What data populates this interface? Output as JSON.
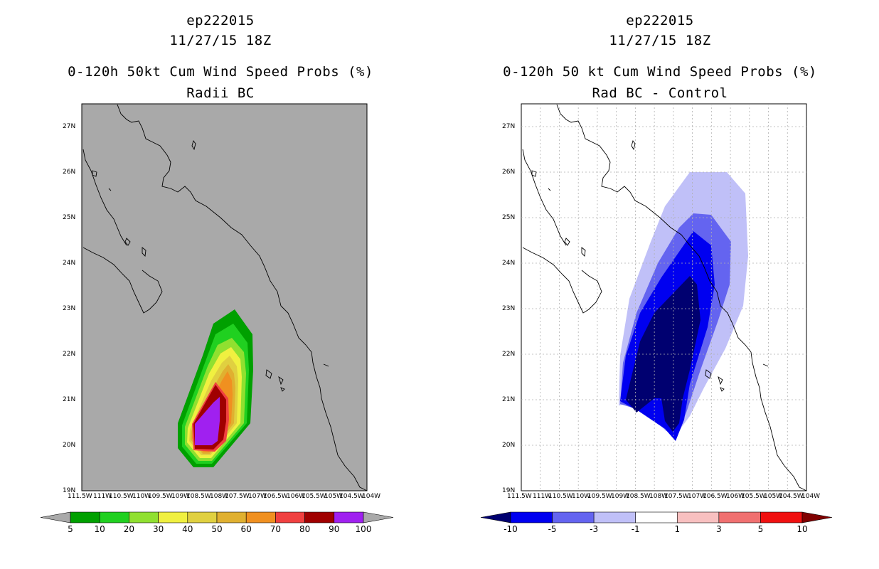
{
  "left_panel": {
    "title1": "ep222015",
    "title2": "11/27/15 18Z",
    "title3": "0-120h 50kt Cum Wind Speed Probs (%)",
    "title4": "Radii BC",
    "colorbar": {
      "labels": [
        "5",
        "10",
        "20",
        "30",
        "40",
        "50",
        "60",
        "70",
        "80",
        "90",
        "100"
      ],
      "colors": [
        "#00a000",
        "#20d020",
        "#90e030",
        "#f0f040",
        "#e0d040",
        "#e0b030",
        "#f09020",
        "#f04040",
        "#a00000",
        "#a020f0"
      ],
      "under_color": "#a9a9a9",
      "over_color": "#a9a9a9"
    }
  },
  "right_panel": {
    "title1": "ep222015",
    "title2": "11/27/15 18Z",
    "title3": "0-120h 50 kt Cum Wind Speed Probs (%)",
    "title4": "Rad BC - Control",
    "colorbar": {
      "labels": [
        "-10",
        "-5",
        "-3",
        "-1",
        "1",
        "3",
        "5",
        "10"
      ],
      "colors": [
        "#0000f0",
        "#6464f0",
        "#c0c0f8",
        "#ffffff",
        "#f8c0c0",
        "#f07070",
        "#f01010"
      ],
      "under_color": "#000070",
      "over_color": "#800000"
    }
  },
  "map_axes": {
    "lat_labels": [
      "27N",
      "26N",
      "25N",
      "24N",
      "23N",
      "22N",
      "21N",
      "20N",
      "19N"
    ],
    "lon_labels": [
      "111.5W",
      "111W",
      "110.5W",
      "110W",
      "109.5W",
      "109W",
      "108.5W",
      "108W",
      "107.5W",
      "107W",
      "106.5W",
      "106W",
      "105.5W",
      "105W",
      "104.5W",
      "104W"
    ],
    "lon_range": [
      -111.5,
      -104
    ],
    "lat_range": [
      19,
      27.5
    ]
  },
  "styles": {
    "left_background": "#a9a9a9",
    "right_background": "#ffffff",
    "grid_color": "#b0b0b0"
  }
}
